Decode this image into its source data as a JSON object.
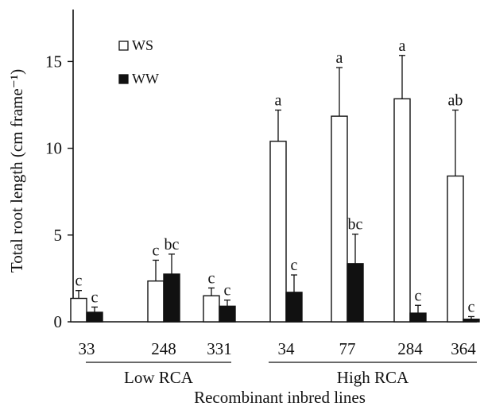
{
  "chart_data": {
    "type": "bar",
    "ylabel": "Total root length (cm frame⁻¹)",
    "xlabel": "Recombinant inbred lines",
    "ylim": [
      0,
      17.5
    ],
    "yticks": [
      0,
      5,
      10,
      15
    ],
    "categories": [
      "33",
      "248",
      "331",
      "34",
      "77",
      "284",
      "364"
    ],
    "groups": [
      {
        "label": "Low RCA",
        "categories": [
          "33",
          "248",
          "331"
        ]
      },
      {
        "label": "High RCA",
        "categories": [
          "34",
          "77",
          "284",
          "364"
        ]
      }
    ],
    "series": [
      {
        "name": "WS",
        "fill": "#ffffff",
        "values": [
          1.35,
          2.35,
          1.5,
          10.4,
          11.85,
          12.85,
          8.4
        ],
        "errors": [
          0.45,
          1.2,
          0.45,
          1.8,
          2.8,
          2.5,
          3.8
        ],
        "letters": [
          "c",
          "c",
          "c",
          "a",
          "a",
          "a",
          "ab"
        ]
      },
      {
        "name": "WW",
        "fill": "#111111",
        "values": [
          0.55,
          2.75,
          0.9,
          1.7,
          3.35,
          0.5,
          0.15
        ],
        "errors": [
          0.3,
          1.15,
          0.35,
          1.0,
          1.7,
          0.45,
          0.15
        ],
        "letters": [
          "c",
          "bc",
          "c",
          "c",
          "bc",
          "c",
          "c"
        ]
      }
    ],
    "legend": "top-left",
    "grid": false
  }
}
